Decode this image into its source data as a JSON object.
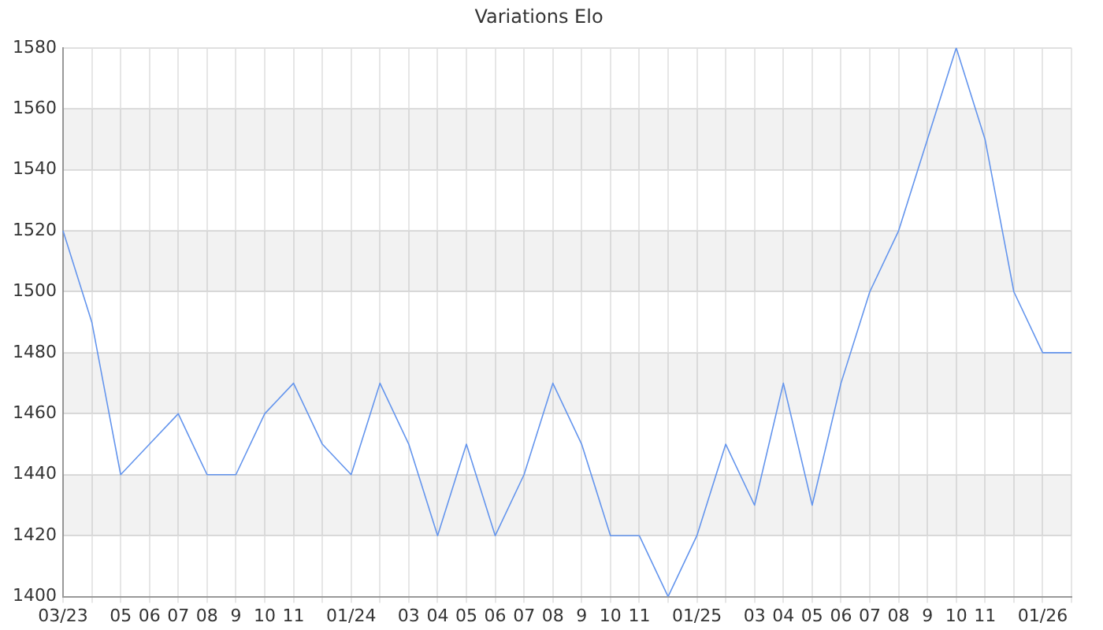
{
  "chart_data": {
    "type": "line",
    "title": "Variations Elo",
    "categories": [
      "03/23",
      null,
      "05",
      "06",
      "07",
      "08",
      "9",
      "10",
      "11",
      null,
      "01/24",
      null,
      "03",
      "04",
      "05",
      "06",
      "07",
      "08",
      "9",
      "10",
      "11",
      null,
      "01/25",
      null,
      "03",
      "04",
      "05",
      "06",
      "07",
      "08",
      "9",
      "10",
      "11",
      null,
      "01/26",
      null
    ],
    "series": [
      {
        "color": "#6495ed",
        "values": [
          1520,
          1490,
          1440,
          1450,
          1460,
          1440,
          1440,
          1460,
          1470,
          1450,
          1440,
          1470,
          1450,
          1420,
          1450,
          1420,
          1440,
          1470,
          1450,
          1420,
          1420,
          1400,
          1420,
          1450,
          1430,
          1470,
          1430,
          1470,
          1500,
          1520,
          1550,
          1580,
          1550,
          1500,
          1480,
          1480
        ]
      }
    ],
    "ylim": [
      1400,
      1580
    ],
    "yticks": [
      1400,
      1420,
      1440,
      1460,
      1480,
      1500,
      1520,
      1540,
      1560,
      1580
    ],
    "grid": true,
    "legend": false,
    "marker": "none",
    "line_style": "solid"
  }
}
